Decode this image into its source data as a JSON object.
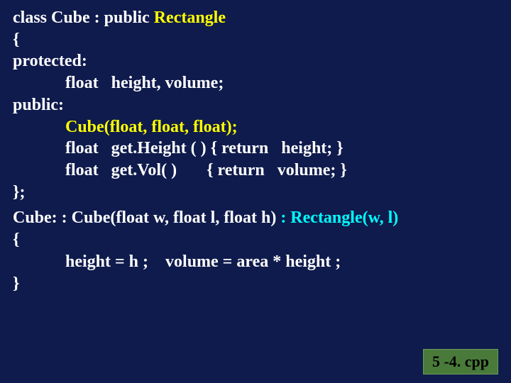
{
  "colors": {
    "background": "#0f1b4c",
    "text": "#ffffff",
    "highlight_yellow": "#ffff00",
    "highlight_cyan": "#00ffff",
    "badge_bg": "#4a7a3a",
    "badge_text": "#000000"
  },
  "code": {
    "l1a": "class Cube : public ",
    "l1b": "Rectangle",
    "l2": "{",
    "l3": "protected:",
    "l4": "float   height, volume;",
    "l5": "public:",
    "l6": "Cube(float, float, float);",
    "l7": "float   get.Height ( ) { return   height; }",
    "l8": "float   get.Vol( )       { return   volume; }",
    "l9": "};",
    "l10a": "Cube: : Cube(float w, float l, float h) ",
    "l10b": ": Rectangle(w, l)",
    "l11": "{",
    "l12": "height = h ;    volume = area * height ;",
    "l13": "}"
  },
  "badge": "5 -4. cpp"
}
